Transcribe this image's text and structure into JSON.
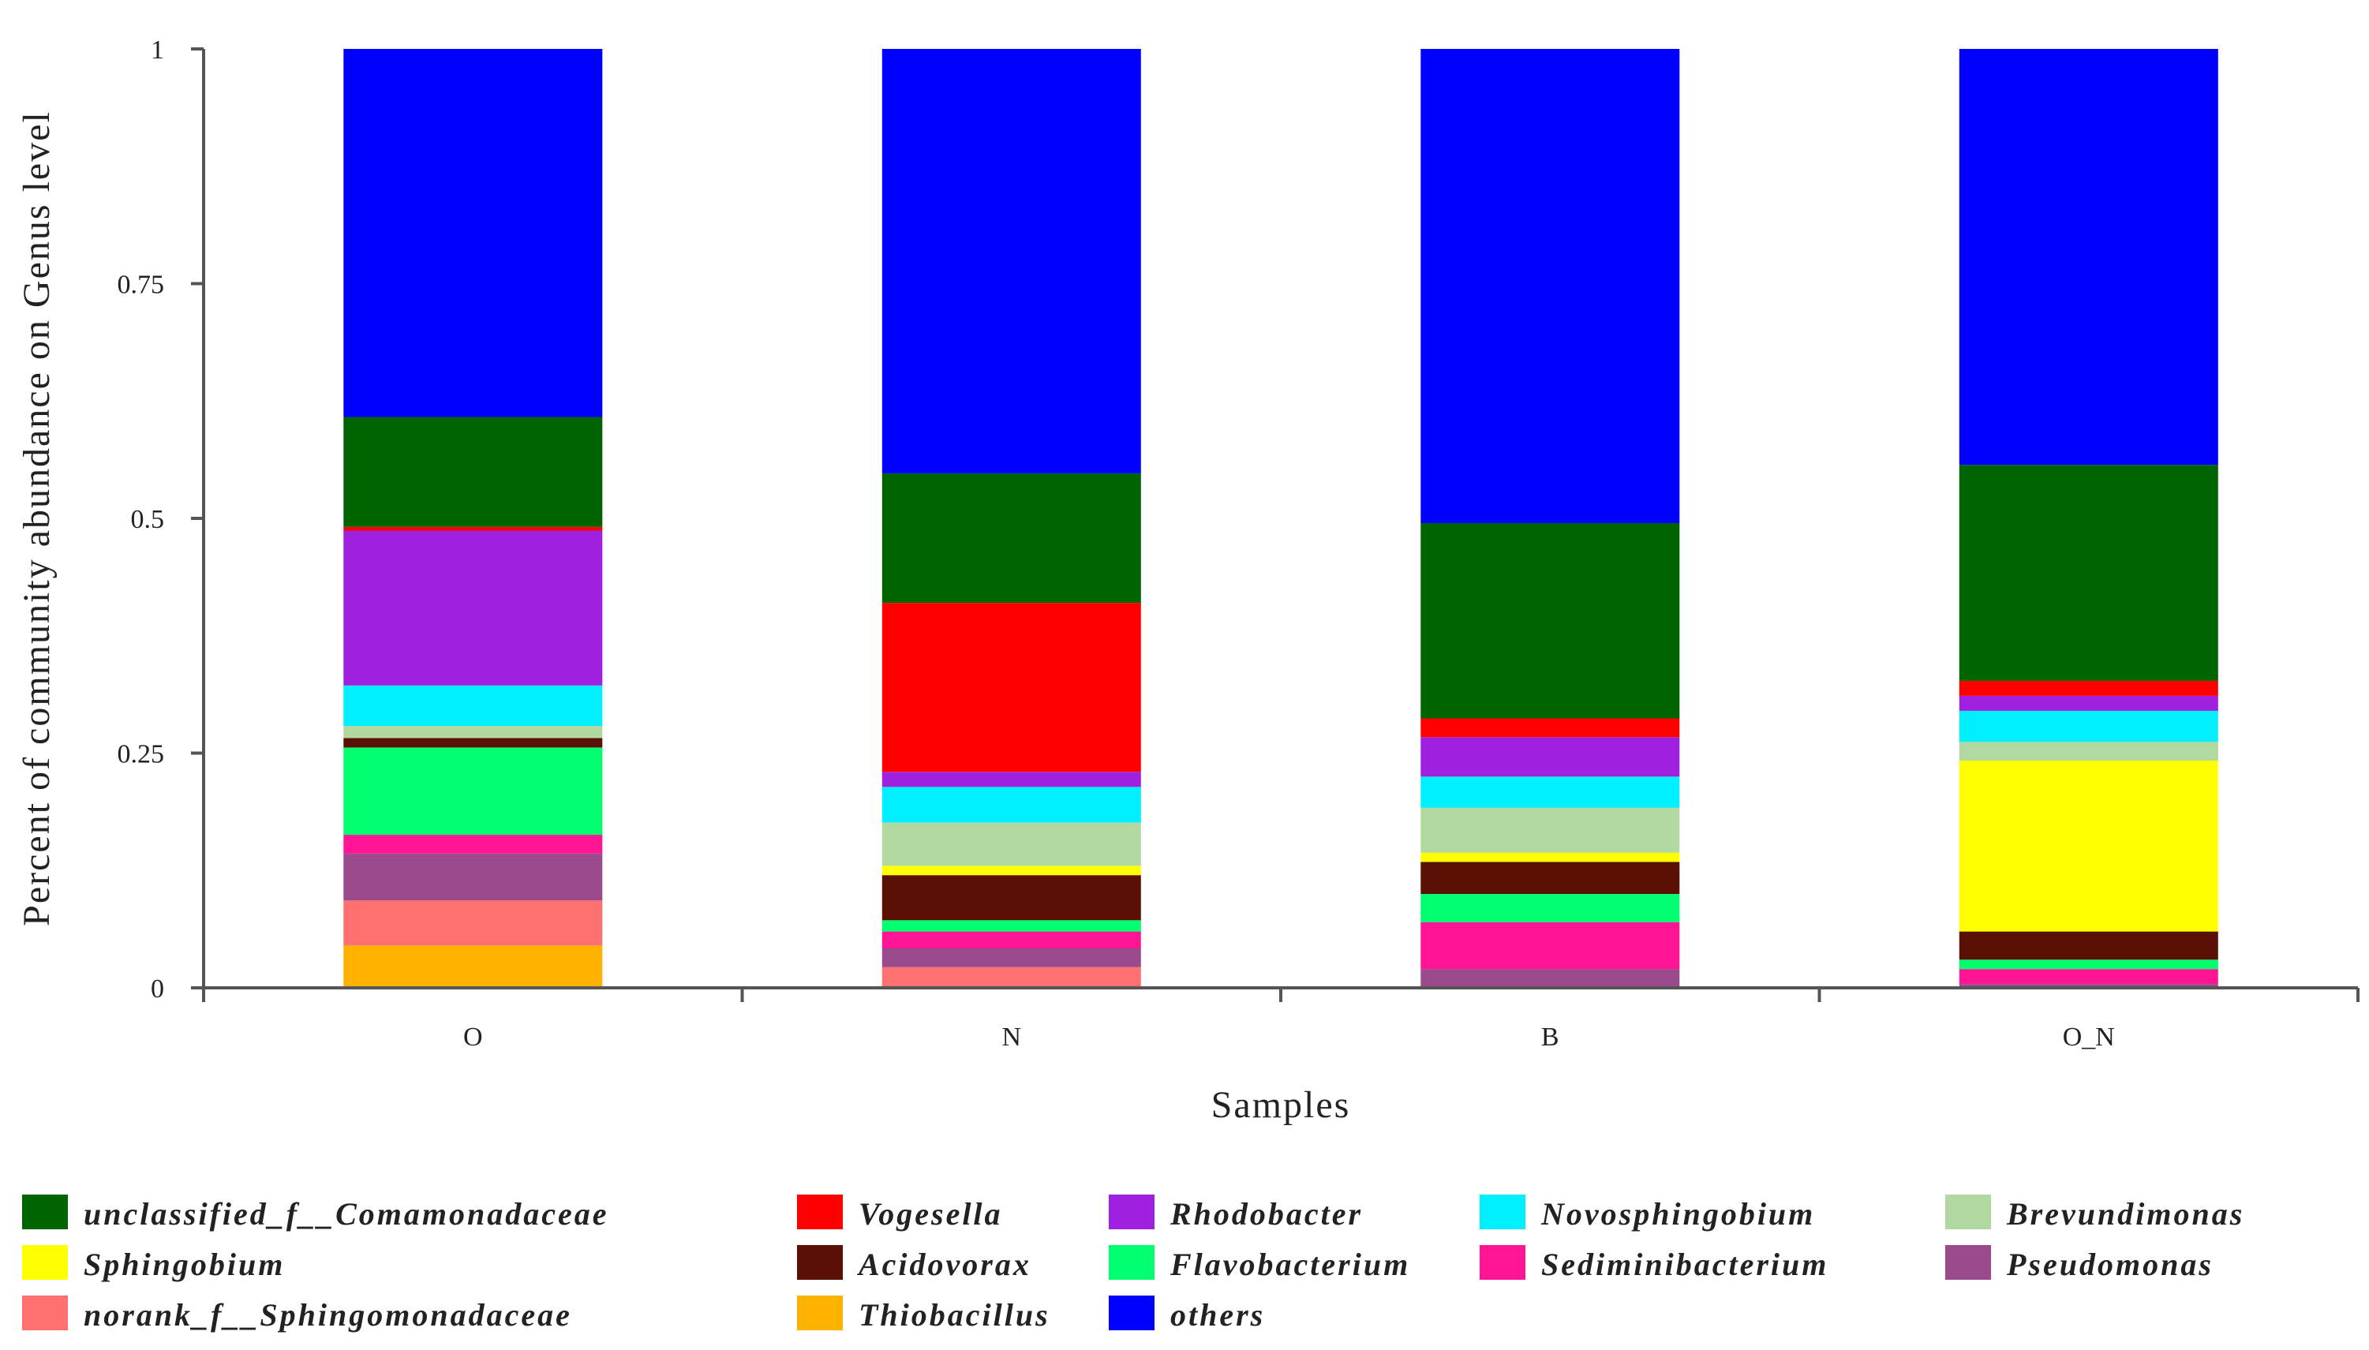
{
  "chart_data": {
    "type": "bar",
    "stacked": true,
    "title": "",
    "xlabel": "Samples",
    "ylabel": "Percent of community abundance on Genus level",
    "ylim": [
      0,
      1
    ],
    "yticks": [
      0,
      0.25,
      0.5,
      0.75,
      1
    ],
    "ytick_labels": [
      "0",
      "0.25",
      "0.5",
      "0.75",
      "1"
    ],
    "categories": [
      "O",
      "N",
      "B",
      "O_N"
    ],
    "legend_position": "bottom",
    "series": [
      {
        "name": "Thiobacillus",
        "color": "#FFB300",
        "values": [
          0.045,
          0,
          0,
          0
        ]
      },
      {
        "name": "norank_f__Sphingomonadaceae",
        "color": "#FF7070",
        "values": [
          0.048,
          0.022,
          0,
          0
        ]
      },
      {
        "name": "Pseudomonas",
        "color": "#9B4A8C",
        "values": [
          0.05,
          0.02,
          0.02,
          0.004
        ]
      },
      {
        "name": "Sediminibacterium",
        "color": "#FF1493",
        "values": [
          0.02,
          0.018,
          0.05,
          0.016
        ]
      },
      {
        "name": "Flavobacterium",
        "color": "#00FF6E",
        "values": [
          0.093,
          0.012,
          0.03,
          0.01
        ]
      },
      {
        "name": "Acidovorax",
        "color": "#5A1004",
        "values": [
          0.01,
          0.048,
          0.034,
          0.03
        ]
      },
      {
        "name": "Sphingobium",
        "color": "#FFFF00",
        "values": [
          0,
          0.01,
          0.01,
          0.182
        ]
      },
      {
        "name": "Brevundimonas",
        "color": "#B0D8A0",
        "values": [
          0.013,
          0.046,
          0.048,
          0.02
        ]
      },
      {
        "name": "Novosphingobium",
        "color": "#00F0FF",
        "values": [
          0.043,
          0.038,
          0.033,
          0.033
        ]
      },
      {
        "name": "Rhodobacter",
        "color": "#A020E0",
        "values": [
          0.165,
          0.016,
          0.042,
          0.016
        ]
      },
      {
        "name": "Vogesella",
        "color": "#FF0000",
        "values": [
          0.004,
          0.18,
          0.02,
          0.016
        ]
      },
      {
        "name": "unclassified_f__Comamonadaceae",
        "color": "#006400",
        "values": [
          0.117,
          0.138,
          0.208,
          0.23
        ]
      },
      {
        "name": "others",
        "color": "#0000FF",
        "values": [
          0.392,
          0.452,
          0.505,
          0.443
        ]
      }
    ],
    "legend_order": [
      "unclassified_f__Comamonadaceae",
      "Vogesella",
      "Rhodobacter",
      "Novosphingobium",
      "Brevundimonas",
      "Sphingobium",
      "Acidovorax",
      "Flavobacterium",
      "Sediminibacterium",
      "Pseudomonas",
      "norank_f__Sphingomonadaceae",
      "Thiobacillus",
      "others"
    ]
  }
}
